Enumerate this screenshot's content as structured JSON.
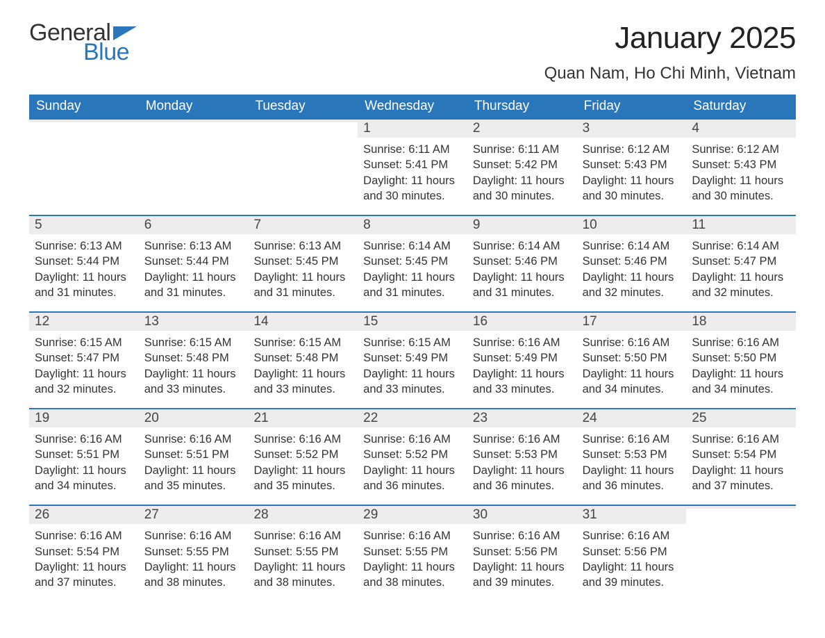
{
  "logo": {
    "word1": "General",
    "word2": "Blue",
    "text_color": "#333333",
    "blue_color": "#2a76ba"
  },
  "title": "January 2025",
  "location": "Quan Nam, Ho Chi Minh, Vietnam",
  "colors": {
    "header_bg": "#2a76ba",
    "header_text": "#ffffff",
    "daynum_bg": "#ececec",
    "daynum_border": "#2a76ba",
    "body_text": "#333333",
    "page_bg": "#ffffff"
  },
  "fonts": {
    "title_size_pt": 33,
    "location_size_pt": 18,
    "header_size_pt": 14,
    "cell_size_pt": 12
  },
  "day_names": [
    "Sunday",
    "Monday",
    "Tuesday",
    "Wednesday",
    "Thursday",
    "Friday",
    "Saturday"
  ],
  "weeks": [
    [
      {
        "day": "",
        "sunrise": "",
        "sunset": "",
        "daylight1": "",
        "daylight2": ""
      },
      {
        "day": "",
        "sunrise": "",
        "sunset": "",
        "daylight1": "",
        "daylight2": ""
      },
      {
        "day": "",
        "sunrise": "",
        "sunset": "",
        "daylight1": "",
        "daylight2": ""
      },
      {
        "day": "1",
        "sunrise": "Sunrise: 6:11 AM",
        "sunset": "Sunset: 5:41 PM",
        "daylight1": "Daylight: 11 hours",
        "daylight2": "and 30 minutes."
      },
      {
        "day": "2",
        "sunrise": "Sunrise: 6:11 AM",
        "sunset": "Sunset: 5:42 PM",
        "daylight1": "Daylight: 11 hours",
        "daylight2": "and 30 minutes."
      },
      {
        "day": "3",
        "sunrise": "Sunrise: 6:12 AM",
        "sunset": "Sunset: 5:43 PM",
        "daylight1": "Daylight: 11 hours",
        "daylight2": "and 30 minutes."
      },
      {
        "day": "4",
        "sunrise": "Sunrise: 6:12 AM",
        "sunset": "Sunset: 5:43 PM",
        "daylight1": "Daylight: 11 hours",
        "daylight2": "and 30 minutes."
      }
    ],
    [
      {
        "day": "5",
        "sunrise": "Sunrise: 6:13 AM",
        "sunset": "Sunset: 5:44 PM",
        "daylight1": "Daylight: 11 hours",
        "daylight2": "and 31 minutes."
      },
      {
        "day": "6",
        "sunrise": "Sunrise: 6:13 AM",
        "sunset": "Sunset: 5:44 PM",
        "daylight1": "Daylight: 11 hours",
        "daylight2": "and 31 minutes."
      },
      {
        "day": "7",
        "sunrise": "Sunrise: 6:13 AM",
        "sunset": "Sunset: 5:45 PM",
        "daylight1": "Daylight: 11 hours",
        "daylight2": "and 31 minutes."
      },
      {
        "day": "8",
        "sunrise": "Sunrise: 6:14 AM",
        "sunset": "Sunset: 5:45 PM",
        "daylight1": "Daylight: 11 hours",
        "daylight2": "and 31 minutes."
      },
      {
        "day": "9",
        "sunrise": "Sunrise: 6:14 AM",
        "sunset": "Sunset: 5:46 PM",
        "daylight1": "Daylight: 11 hours",
        "daylight2": "and 31 minutes."
      },
      {
        "day": "10",
        "sunrise": "Sunrise: 6:14 AM",
        "sunset": "Sunset: 5:46 PM",
        "daylight1": "Daylight: 11 hours",
        "daylight2": "and 32 minutes."
      },
      {
        "day": "11",
        "sunrise": "Sunrise: 6:14 AM",
        "sunset": "Sunset: 5:47 PM",
        "daylight1": "Daylight: 11 hours",
        "daylight2": "and 32 minutes."
      }
    ],
    [
      {
        "day": "12",
        "sunrise": "Sunrise: 6:15 AM",
        "sunset": "Sunset: 5:47 PM",
        "daylight1": "Daylight: 11 hours",
        "daylight2": "and 32 minutes."
      },
      {
        "day": "13",
        "sunrise": "Sunrise: 6:15 AM",
        "sunset": "Sunset: 5:48 PM",
        "daylight1": "Daylight: 11 hours",
        "daylight2": "and 33 minutes."
      },
      {
        "day": "14",
        "sunrise": "Sunrise: 6:15 AM",
        "sunset": "Sunset: 5:48 PM",
        "daylight1": "Daylight: 11 hours",
        "daylight2": "and 33 minutes."
      },
      {
        "day": "15",
        "sunrise": "Sunrise: 6:15 AM",
        "sunset": "Sunset: 5:49 PM",
        "daylight1": "Daylight: 11 hours",
        "daylight2": "and 33 minutes."
      },
      {
        "day": "16",
        "sunrise": "Sunrise: 6:16 AM",
        "sunset": "Sunset: 5:49 PM",
        "daylight1": "Daylight: 11 hours",
        "daylight2": "and 33 minutes."
      },
      {
        "day": "17",
        "sunrise": "Sunrise: 6:16 AM",
        "sunset": "Sunset: 5:50 PM",
        "daylight1": "Daylight: 11 hours",
        "daylight2": "and 34 minutes."
      },
      {
        "day": "18",
        "sunrise": "Sunrise: 6:16 AM",
        "sunset": "Sunset: 5:50 PM",
        "daylight1": "Daylight: 11 hours",
        "daylight2": "and 34 minutes."
      }
    ],
    [
      {
        "day": "19",
        "sunrise": "Sunrise: 6:16 AM",
        "sunset": "Sunset: 5:51 PM",
        "daylight1": "Daylight: 11 hours",
        "daylight2": "and 34 minutes."
      },
      {
        "day": "20",
        "sunrise": "Sunrise: 6:16 AM",
        "sunset": "Sunset: 5:51 PM",
        "daylight1": "Daylight: 11 hours",
        "daylight2": "and 35 minutes."
      },
      {
        "day": "21",
        "sunrise": "Sunrise: 6:16 AM",
        "sunset": "Sunset: 5:52 PM",
        "daylight1": "Daylight: 11 hours",
        "daylight2": "and 35 minutes."
      },
      {
        "day": "22",
        "sunrise": "Sunrise: 6:16 AM",
        "sunset": "Sunset: 5:52 PM",
        "daylight1": "Daylight: 11 hours",
        "daylight2": "and 36 minutes."
      },
      {
        "day": "23",
        "sunrise": "Sunrise: 6:16 AM",
        "sunset": "Sunset: 5:53 PM",
        "daylight1": "Daylight: 11 hours",
        "daylight2": "and 36 minutes."
      },
      {
        "day": "24",
        "sunrise": "Sunrise: 6:16 AM",
        "sunset": "Sunset: 5:53 PM",
        "daylight1": "Daylight: 11 hours",
        "daylight2": "and 36 minutes."
      },
      {
        "day": "25",
        "sunrise": "Sunrise: 6:16 AM",
        "sunset": "Sunset: 5:54 PM",
        "daylight1": "Daylight: 11 hours",
        "daylight2": "and 37 minutes."
      }
    ],
    [
      {
        "day": "26",
        "sunrise": "Sunrise: 6:16 AM",
        "sunset": "Sunset: 5:54 PM",
        "daylight1": "Daylight: 11 hours",
        "daylight2": "and 37 minutes."
      },
      {
        "day": "27",
        "sunrise": "Sunrise: 6:16 AM",
        "sunset": "Sunset: 5:55 PM",
        "daylight1": "Daylight: 11 hours",
        "daylight2": "and 38 minutes."
      },
      {
        "day": "28",
        "sunrise": "Sunrise: 6:16 AM",
        "sunset": "Sunset: 5:55 PM",
        "daylight1": "Daylight: 11 hours",
        "daylight2": "and 38 minutes."
      },
      {
        "day": "29",
        "sunrise": "Sunrise: 6:16 AM",
        "sunset": "Sunset: 5:55 PM",
        "daylight1": "Daylight: 11 hours",
        "daylight2": "and 38 minutes."
      },
      {
        "day": "30",
        "sunrise": "Sunrise: 6:16 AM",
        "sunset": "Sunset: 5:56 PM",
        "daylight1": "Daylight: 11 hours",
        "daylight2": "and 39 minutes."
      },
      {
        "day": "31",
        "sunrise": "Sunrise: 6:16 AM",
        "sunset": "Sunset: 5:56 PM",
        "daylight1": "Daylight: 11 hours",
        "daylight2": "and 39 minutes."
      },
      {
        "day": "",
        "sunrise": "",
        "sunset": "",
        "daylight1": "",
        "daylight2": ""
      }
    ]
  ]
}
